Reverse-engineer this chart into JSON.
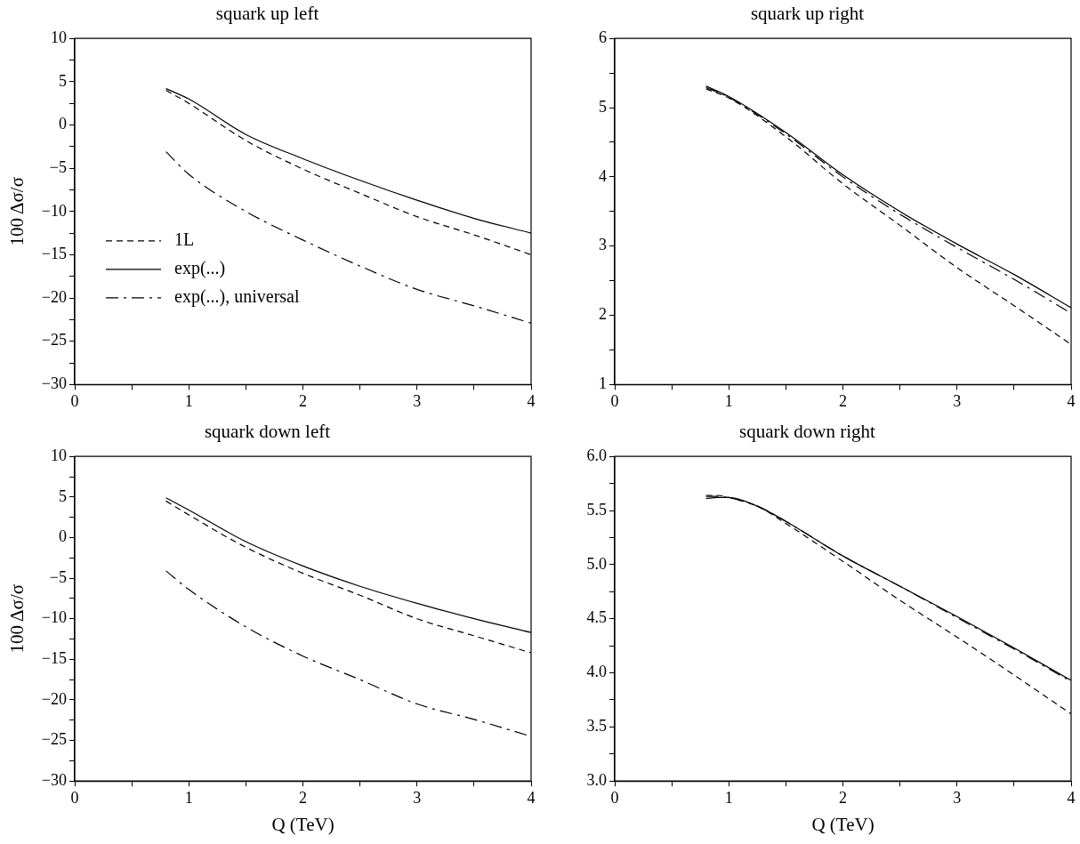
{
  "chart_data": [
    {
      "type": "line",
      "title": "squark up left",
      "ylabel": "100 Δσ/σ",
      "x": [
        0.8,
        1,
        1.5,
        2,
        2.5,
        3,
        3.5,
        4
      ],
      "xlim": [
        0,
        4
      ],
      "ylim": [
        -30,
        10
      ],
      "marker": "none",
      "grid": false,
      "legend": "center left",
      "xticks": [
        0,
        {
          "value": 0.5,
          "label": null
        },
        1,
        {
          "value": 1.5,
          "label": null
        },
        2,
        {
          "value": 2.5,
          "label": null
        },
        3,
        {
          "value": 3.5,
          "label": null
        },
        4
      ],
      "yticks": [
        {
          "value": -30,
          "label": "−30"
        },
        {
          "value": -27.5,
          "label": null
        },
        {
          "value": -25,
          "label": "−25"
        },
        {
          "value": -22.5,
          "label": null
        },
        {
          "value": -20,
          "label": "−20"
        },
        {
          "value": -17.5,
          "label": null
        },
        {
          "value": -15,
          "label": "−15"
        },
        {
          "value": -12.5,
          "label": null
        },
        {
          "value": -10,
          "label": "−10"
        },
        {
          "value": -7.5,
          "label": null
        },
        {
          "value": -5,
          "label": "−5"
        },
        {
          "value": -2.5,
          "label": null
        },
        0,
        {
          "value": 2.5,
          "label": null
        },
        5,
        {
          "value": 7.5,
          "label": null
        },
        10
      ],
      "series": [
        {
          "name": "1L",
          "color": "#000000",
          "line_style": "dashed",
          "values": [
            4.0,
            2.5,
            -1.8,
            -5.1,
            -7.9,
            -10.6,
            -12.7,
            -15.0
          ]
        },
        {
          "name": "exp(...)",
          "color": "#000000",
          "line_style": "solid",
          "values": [
            4.2,
            3.0,
            -1.1,
            -3.9,
            -6.4,
            -8.7,
            -10.8,
            -12.5
          ]
        },
        {
          "name": "exp(...), universal",
          "color": "#000000",
          "line_style": "dashdot",
          "values": [
            -3.1,
            -5.7,
            -10.0,
            -13.3,
            -16.3,
            -19.0,
            -20.9,
            -22.9
          ]
        }
      ]
    },
    {
      "type": "line",
      "title": "squark up right",
      "x": [
        0.8,
        1,
        1.5,
        2,
        2.5,
        3,
        3.5,
        4
      ],
      "xlim": [
        0,
        4
      ],
      "ylim": [
        1,
        6
      ],
      "marker": "none",
      "grid": false,
      "xticks": [
        0,
        {
          "value": 0.5,
          "label": null
        },
        1,
        {
          "value": 1.5,
          "label": null
        },
        2,
        {
          "value": 2.5,
          "label": null
        },
        3,
        {
          "value": 3.5,
          "label": null
        },
        4
      ],
      "yticks": [
        1,
        {
          "value": 1.5,
          "label": null
        },
        2,
        {
          "value": 2.5,
          "label": null
        },
        3,
        {
          "value": 3.5,
          "label": null
        },
        4,
        {
          "value": 4.5,
          "label": null
        },
        5,
        {
          "value": 5.5,
          "label": null
        },
        6
      ],
      "series": [
        {
          "color": "#000000",
          "line_style": "dashed",
          "values": [
            5.27,
            5.14,
            4.58,
            3.9,
            3.3,
            2.69,
            2.14,
            1.58
          ]
        },
        {
          "color": "#000000",
          "line_style": "solid",
          "values": [
            5.31,
            5.16,
            4.64,
            4.03,
            3.5,
            3.03,
            2.59,
            2.11
          ]
        },
        {
          "color": "#000000",
          "line_style": "dashdot",
          "values": [
            5.29,
            5.15,
            4.62,
            4.0,
            3.46,
            2.98,
            2.52,
            2.03
          ]
        }
      ]
    },
    {
      "type": "line",
      "title": "squark down left",
      "xlabel": "Q (TeV)",
      "ylabel": "100 Δσ/σ",
      "x": [
        0.8,
        1,
        1.5,
        2,
        2.5,
        3,
        3.5,
        4
      ],
      "xlim": [
        0,
        4
      ],
      "ylim": [
        -30,
        10
      ],
      "marker": "none",
      "grid": false,
      "xticks": [
        0,
        {
          "value": 0.5,
          "label": null
        },
        1,
        {
          "value": 1.5,
          "label": null
        },
        2,
        {
          "value": 2.5,
          "label": null
        },
        3,
        {
          "value": 3.5,
          "label": null
        },
        4
      ],
      "yticks": [
        {
          "value": -30,
          "label": "−30"
        },
        {
          "value": -27.5,
          "label": null
        },
        {
          "value": -25,
          "label": "−25"
        },
        {
          "value": -22.5,
          "label": null
        },
        {
          "value": -20,
          "label": "−20"
        },
        {
          "value": -17.5,
          "label": null
        },
        {
          "value": -15,
          "label": "−15"
        },
        {
          "value": -12.5,
          "label": null
        },
        {
          "value": -10,
          "label": "−10"
        },
        {
          "value": -7.5,
          "label": null
        },
        {
          "value": -5,
          "label": "−5"
        },
        {
          "value": -2.5,
          "label": null
        },
        0,
        {
          "value": 2.5,
          "label": null
        },
        5,
        {
          "value": 7.5,
          "label": null
        },
        10
      ],
      "series": [
        {
          "color": "#000000",
          "line_style": "dashed",
          "values": [
            4.5,
            2.8,
            -1.2,
            -4.4,
            -7.1,
            -10.0,
            -12.1,
            -14.2
          ]
        },
        {
          "color": "#000000",
          "line_style": "solid",
          "values": [
            4.9,
            3.4,
            -0.5,
            -3.5,
            -6.0,
            -8.1,
            -10.0,
            -11.7
          ]
        },
        {
          "color": "#000000",
          "line_style": "dashdot",
          "values": [
            -4.1,
            -6.4,
            -11.0,
            -14.6,
            -17.5,
            -20.5,
            -22.4,
            -24.5
          ]
        }
      ]
    },
    {
      "type": "line",
      "title": "squark down right",
      "xlabel": "Q (TeV)",
      "x": [
        0.8,
        0.9,
        1,
        1.25,
        1.5,
        2,
        2.5,
        3,
        3.5,
        4
      ],
      "xlim": [
        0,
        4
      ],
      "ylim": [
        3,
        6
      ],
      "marker": "none",
      "grid": false,
      "xticks": [
        0,
        {
          "value": 0.5,
          "label": null
        },
        1,
        {
          "value": 1.5,
          "label": null
        },
        2,
        {
          "value": 2.5,
          "label": null
        },
        3,
        {
          "value": 3.5,
          "label": null
        },
        4
      ],
      "yticks": [
        {
          "value": 3,
          "label": "3.0"
        },
        {
          "value": 3.25,
          "label": null
        },
        {
          "value": 3.5,
          "label": "3.5"
        },
        {
          "value": 3.75,
          "label": null
        },
        {
          "value": 4,
          "label": "4.0"
        },
        {
          "value": 4.25,
          "label": null
        },
        {
          "value": 4.5,
          "label": "4.5"
        },
        {
          "value": 4.75,
          "label": null
        },
        {
          "value": 5,
          "label": "5.0"
        },
        {
          "value": 5.25,
          "label": null
        },
        {
          "value": 5.5,
          "label": "5.5"
        },
        {
          "value": 5.75,
          "label": null
        },
        {
          "value": 6,
          "label": "6.0"
        }
      ],
      "series": [
        {
          "color": "#000000",
          "line_style": "dashed",
          "values": [
            5.64,
            5.64,
            5.62,
            5.54,
            5.38,
            5.03,
            4.67,
            4.33,
            3.98,
            3.62
          ]
        },
        {
          "color": "#000000",
          "line_style": "solid",
          "values": [
            5.61,
            5.62,
            5.62,
            5.54,
            5.4,
            5.08,
            4.8,
            4.52,
            4.23,
            3.93
          ]
        },
        {
          "color": "#000000",
          "line_style": "dashdot",
          "values": [
            5.63,
            5.63,
            5.62,
            5.54,
            5.4,
            5.08,
            4.8,
            4.51,
            4.22,
            3.92
          ]
        }
      ]
    }
  ]
}
